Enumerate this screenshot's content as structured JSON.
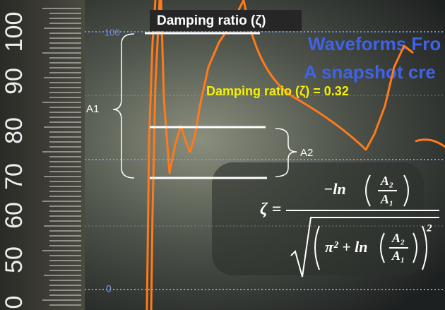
{
  "annotations": {
    "title": "Damping ratio (ζ)",
    "result": "Damping ratio (ζ) = 0.32",
    "a1": "A1",
    "a2": "A2"
  },
  "monitor": {
    "scale_top": "100",
    "scale_bottom": "0",
    "heading_line1": "Waveforms Fro",
    "heading_line2": "A snapshot cre"
  },
  "ruler": {
    "labels": [
      "100",
      "90",
      "80",
      "70",
      "60",
      "50",
      "0"
    ]
  },
  "formula": {
    "lhs": "ζ =",
    "numerator_fn": "−ln",
    "ratio_top": "A₂",
    "ratio_bottom": "A₁",
    "denominator_lead": "π² + ln",
    "exponent": "2"
  }
}
